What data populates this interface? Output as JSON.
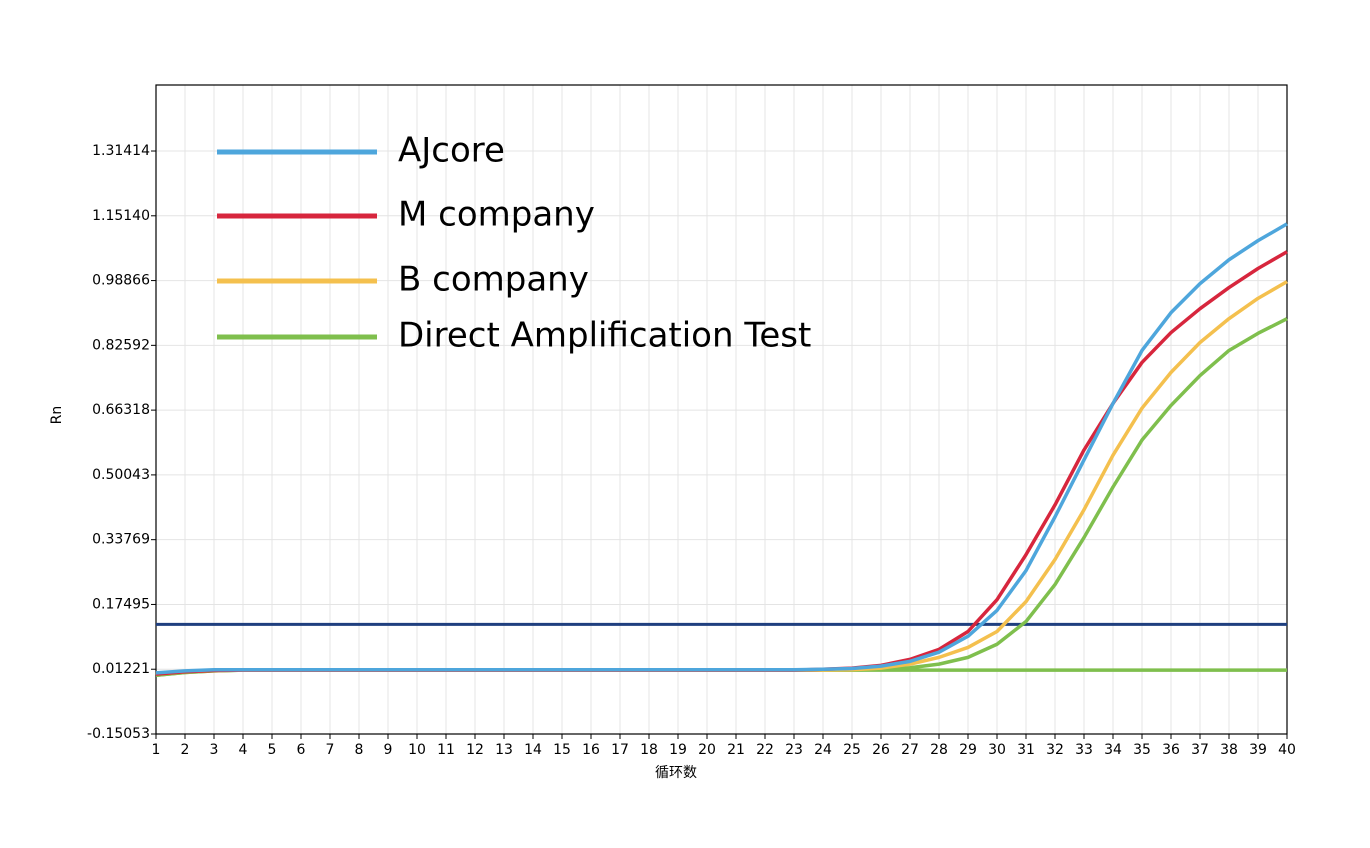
{
  "chart_data": {
    "type": "line",
    "y_label": "Rn",
    "x_label": "循环数",
    "x": [
      1,
      2,
      3,
      4,
      5,
      6,
      7,
      8,
      9,
      10,
      11,
      12,
      13,
      14,
      15,
      16,
      17,
      18,
      19,
      20,
      21,
      22,
      23,
      24,
      25,
      26,
      27,
      28,
      29,
      30,
      31,
      32,
      33,
      34,
      35,
      36,
      37,
      38,
      39,
      40
    ],
    "xlim": [
      1,
      40
    ],
    "xticks": [
      1,
      2,
      3,
      4,
      5,
      6,
      7,
      8,
      9,
      10,
      11,
      12,
      13,
      14,
      15,
      16,
      17,
      18,
      19,
      20,
      21,
      22,
      23,
      24,
      25,
      26,
      27,
      28,
      29,
      30,
      31,
      32,
      33,
      34,
      35,
      36,
      37,
      38,
      39,
      40
    ],
    "ylim": [
      -0.15053,
      1.48
    ],
    "yticks": [
      -0.15053,
      0.01221,
      0.17495,
      0.33769,
      0.50043,
      0.66318,
      0.82592,
      0.98866,
      {
        "value": 1.1514,
        "label": "1.15140"
      },
      1.31414
    ],
    "grid": true,
    "legend": "upper left",
    "threshold": 0.125,
    "threshold_color": "#1f3f7f",
    "series": [
      {
        "name": "AJcore",
        "color": "#4ea6dc",
        "values": [
          0.003,
          0.008,
          0.011,
          0.011,
          0.011,
          0.011,
          0.011,
          0.011,
          0.011,
          0.011,
          0.011,
          0.011,
          0.011,
          0.011,
          0.011,
          0.011,
          0.011,
          0.011,
          0.011,
          0.011,
          0.011,
          0.011,
          0.011,
          0.012,
          0.014,
          0.02,
          0.032,
          0.055,
          0.095,
          0.16,
          0.26,
          0.395,
          0.538,
          0.68,
          0.813,
          0.908,
          0.981,
          1.041,
          1.089,
          1.131
        ]
      },
      {
        "name": "M company",
        "color": "#d7263d",
        "values": [
          0.0,
          0.006,
          0.009,
          0.01,
          0.01,
          0.01,
          0.01,
          0.01,
          0.01,
          0.01,
          0.01,
          0.01,
          0.01,
          0.01,
          0.01,
          0.01,
          0.01,
          0.01,
          0.01,
          0.01,
          0.01,
          0.01,
          0.01,
          0.012,
          0.015,
          0.022,
          0.037,
          0.062,
          0.107,
          0.187,
          0.3,
          0.425,
          0.563,
          0.68,
          0.783,
          0.858,
          0.918,
          0.971,
          1.019,
          1.061
        ]
      },
      {
        "name": "B company",
        "color": "#f4c04e",
        "values": [
          0.0,
          0.006,
          0.009,
          0.01,
          0.01,
          0.01,
          0.01,
          0.01,
          0.01,
          0.01,
          0.01,
          0.01,
          0.01,
          0.01,
          0.01,
          0.01,
          0.01,
          0.01,
          0.01,
          0.01,
          0.01,
          0.01,
          0.01,
          0.01,
          0.011,
          0.015,
          0.025,
          0.042,
          0.067,
          0.107,
          0.182,
          0.288,
          0.413,
          0.55,
          0.668,
          0.758,
          0.833,
          0.893,
          0.944,
          0.986
        ]
      },
      {
        "name": "Direct Amplification Test",
        "color": "#7fbf4d",
        "values": [
          -0.003,
          0.004,
          0.008,
          0.01,
          0.01,
          0.01,
          0.01,
          0.01,
          0.01,
          0.01,
          0.01,
          0.01,
          0.01,
          0.01,
          0.01,
          0.01,
          0.01,
          0.01,
          0.01,
          0.01,
          0.01,
          0.01,
          0.01,
          0.01,
          0.01,
          0.012,
          0.016,
          0.025,
          0.042,
          0.075,
          0.132,
          0.225,
          0.343,
          0.47,
          0.588,
          0.675,
          0.75,
          0.813,
          0.856,
          0.893
        ]
      },
      {
        "color": "#7fbf4d",
        "values": [
          -0.003,
          0.004,
          0.008,
          0.01,
          0.01,
          0.01,
          0.01,
          0.01,
          0.01,
          0.01,
          0.01,
          0.01,
          0.01,
          0.01,
          0.01,
          0.01,
          0.01,
          0.01,
          0.01,
          0.01,
          0.01,
          0.01,
          0.01,
          0.01,
          0.01,
          0.01,
          0.01,
          0.01,
          0.01,
          0.01,
          0.01,
          0.01,
          0.01,
          0.01,
          0.01,
          0.01,
          0.01,
          0.01,
          0.01,
          0.01
        ]
      }
    ]
  }
}
